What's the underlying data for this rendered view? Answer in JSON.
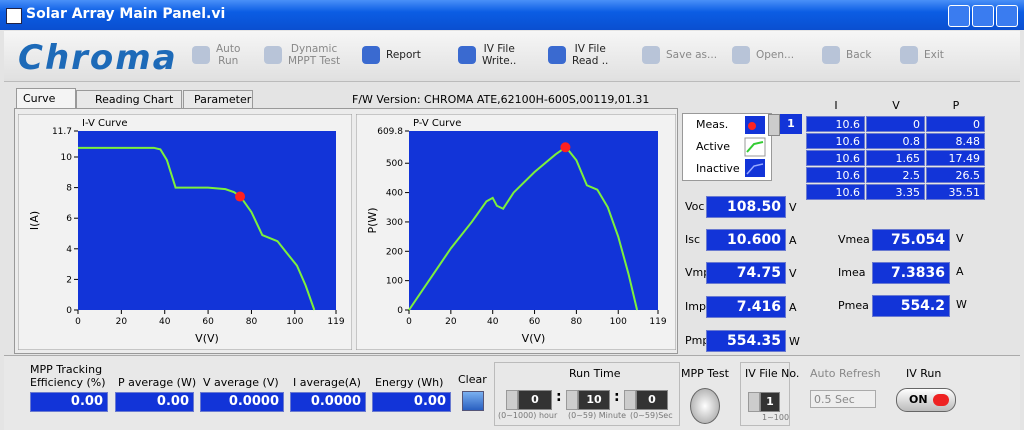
{
  "window": {
    "title": "Solar Array Main Panel.vi"
  },
  "toolbar": {
    "logo": "Chroma",
    "buttons": [
      [
        "Auto",
        "Run"
      ],
      [
        "Dynamic",
        "MPPT Test"
      ],
      [
        "Report"
      ],
      [
        "IV File",
        "Write.."
      ],
      [
        "IV File",
        "Read .."
      ],
      [
        "Save as..."
      ],
      [
        "Open..."
      ],
      [
        "Back"
      ],
      [
        "Exit"
      ]
    ]
  },
  "tabs": [
    "Curve",
    "Reading Chart",
    "Parameter"
  ],
  "firmware": "F/W Version: CHROMA ATE,62100H-600S,00119,01.31",
  "charts": [
    {
      "type": "line",
      "title": "I-V Curve",
      "x_label": "V(V)",
      "y_label": "I(A)",
      "xlim": [
        0,
        119
      ],
      "ylim": [
        0,
        11.7
      ],
      "xticks": [
        0,
        20,
        40,
        60,
        80,
        100,
        119
      ],
      "yticks": [
        0,
        2,
        4,
        6,
        8,
        10,
        11.7
      ],
      "series": [
        {
          "color": "#7cf03c",
          "x": [
            0,
            35,
            38,
            41,
            45,
            60,
            68,
            72,
            75,
            80,
            85,
            92,
            97,
            101,
            105,
            109
          ],
          "values": [
            10.6,
            10.6,
            10.5,
            9.8,
            8,
            8,
            7.9,
            7.7,
            7.4,
            6.4,
            4.9,
            4.5,
            3.6,
            2.9,
            1.6,
            0
          ]
        }
      ],
      "marker": {
        "x": 74.75,
        "y": 7.416,
        "color": "#ff2020"
      }
    },
    {
      "type": "line",
      "title": "P-V Curve",
      "x_label": "V(V)",
      "y_label": "P(W)",
      "xlim": [
        0,
        119
      ],
      "ylim": [
        0,
        609.8
      ],
      "xticks": [
        0,
        20,
        40,
        60,
        80,
        100,
        119
      ],
      "yticks": [
        0,
        100,
        200,
        300,
        400,
        500,
        609.8
      ],
      "series": [
        {
          "color": "#7cf03c",
          "x": [
            0,
            10,
            20,
            30,
            37,
            40,
            42,
            45,
            50,
            60,
            70,
            75,
            80,
            85,
            90,
            95,
            100,
            105,
            109
          ],
          "values": [
            0,
            105,
            210,
            300,
            370,
            382,
            355,
            345,
            400,
            470,
            530,
            555,
            510,
            425,
            410,
            350,
            250,
            120,
            0
          ]
        }
      ],
      "marker": {
        "x": 74.75,
        "y": 554.35,
        "color": "#ff2020"
      }
    }
  ],
  "legend": {
    "items": [
      "Meas.",
      "Active",
      "Inactive"
    ],
    "index": "1"
  },
  "table": {
    "columns": [
      "I",
      "V",
      "P"
    ],
    "rows": [
      [
        "10.6",
        "0",
        "0"
      ],
      [
        "10.6",
        "0.8",
        "8.48"
      ],
      [
        "10.6",
        "1.65",
        "17.49"
      ],
      [
        "10.6",
        "2.5",
        "26.5"
      ],
      [
        "10.6",
        "3.35",
        "35.51"
      ]
    ]
  },
  "readings": [
    {
      "label": "Voc",
      "value": "108.50",
      "unit": "V"
    },
    {
      "label": "Isc",
      "value": "10.600",
      "unit": "A"
    },
    {
      "label": "Vmp",
      "value": "74.75",
      "unit": "V"
    },
    {
      "label": "Imp",
      "value": "7.416",
      "unit": "A"
    },
    {
      "label": "Pmp",
      "value": "554.35",
      "unit": "W"
    }
  ],
  "measured": [
    {
      "label": "Vmea",
      "value": "75.054",
      "unit": "V"
    },
    {
      "label": "Imea",
      "value": "7.3836",
      "unit": "A"
    },
    {
      "label": "Pmea",
      "value": "554.2",
      "unit": "W"
    }
  ],
  "bottom": {
    "fields": [
      {
        "label": "MPP Tracking Efficiency (%)",
        "value": "0.00"
      },
      {
        "label": "P average (W)",
        "value": "0.00"
      },
      {
        "label": "V average (V)",
        "value": "0.0000"
      },
      {
        "label": "I average(A)",
        "value": "0.0000"
      },
      {
        "label": "Energy (Wh)",
        "value": "0.00"
      }
    ],
    "clear": "Clear",
    "run_time": {
      "label": "Run Time",
      "hour": "0",
      "minute": "10",
      "second": "0",
      "hour_range": "(0~1000) hour",
      "minute_range": "(0~59) Minute",
      "second_range": "(0~59)Sec"
    },
    "mpp_test": "MPP Test",
    "iv_file": {
      "label": "IV File No.",
      "value": "1",
      "range": "1~100"
    },
    "auto_refresh": {
      "label": "Auto Refresh",
      "value": "0.5 Sec"
    },
    "iv_run": {
      "label": "IV Run",
      "state": "ON"
    }
  }
}
